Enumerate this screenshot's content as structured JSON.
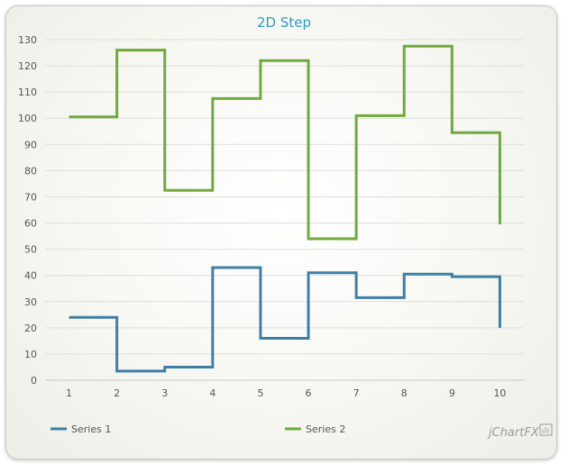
{
  "chart_data": {
    "type": "line",
    "style": "step",
    "title": "2D Step",
    "xlabel": "",
    "ylabel": "",
    "x": [
      1,
      2,
      3,
      4,
      5,
      6,
      7,
      8,
      9,
      10
    ],
    "xlim": [
      1,
      10
    ],
    "ylim": [
      0,
      130
    ],
    "yticks": [
      0,
      10,
      20,
      30,
      40,
      50,
      60,
      70,
      80,
      90,
      100,
      110,
      120,
      130
    ],
    "grid": true,
    "legend": "bottom",
    "series": [
      {
        "name": "Series 1",
        "color": "#3f7fa6",
        "values": [
          24,
          3.5,
          5,
          43,
          16,
          41,
          31.5,
          40.5,
          39.5,
          20
        ]
      },
      {
        "name": "Series 2",
        "color": "#70aa3e",
        "values": [
          100.5,
          126,
          72.5,
          107.5,
          122,
          54,
          101,
          127.5,
          94.5,
          59.5
        ]
      }
    ]
  },
  "branding": {
    "text": "jChartFX"
  }
}
